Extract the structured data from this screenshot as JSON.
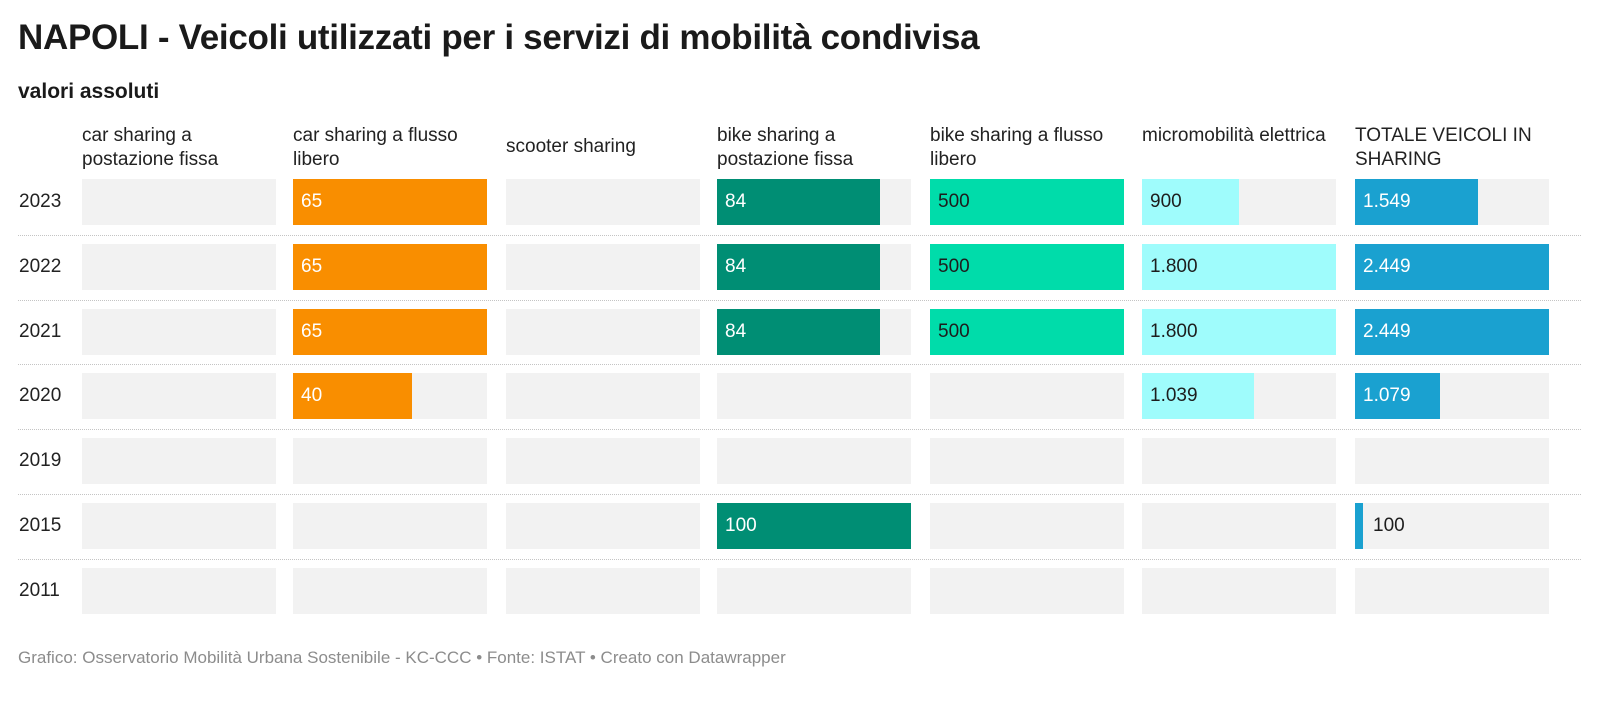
{
  "header": {
    "title": "NAPOLI - Veicoli utilizzati per i servizi di mobilità condivisa",
    "subtitle": "valori assoluti"
  },
  "footer": {
    "text": "Grafico: Osservatorio Mobilità Urbana Sostenibile - KC-CCC • Fonte: ISTAT • Creato con Datawrapper"
  },
  "chart_data": {
    "type": "bar",
    "title": "NAPOLI - Veicoli utilizzati per i servizi di mobilità condivisa",
    "subtitle": "valori assoluti",
    "categories": [
      "2023",
      "2022",
      "2021",
      "2020",
      "2019",
      "2015",
      "2011"
    ],
    "series": [
      {
        "name": "car sharing a postazione fissa",
        "color": "#f28c00",
        "values": [
          null,
          null,
          null,
          null,
          null,
          null,
          null
        ],
        "labels": [
          null,
          null,
          null,
          null,
          null,
          null,
          null
        ]
      },
      {
        "name": "car sharing a flusso libero",
        "color": "#f98e00",
        "values": [
          65,
          65,
          65,
          40,
          null,
          null,
          null
        ],
        "labels": [
          "65",
          "65",
          "65",
          "40",
          null,
          null,
          null
        ]
      },
      {
        "name": "scooter sharing",
        "color": "#f28c00",
        "values": [
          null,
          null,
          null,
          null,
          null,
          null,
          null
        ],
        "labels": [
          null,
          null,
          null,
          null,
          null,
          null,
          null
        ]
      },
      {
        "name": "bike sharing a postazione fissa",
        "color": "#008e74",
        "values": [
          84,
          84,
          84,
          null,
          null,
          100,
          null
        ],
        "labels": [
          "84",
          "84",
          "84",
          null,
          null,
          "100",
          null
        ]
      },
      {
        "name": "bike sharing a flusso libero",
        "color": "#00dcaa",
        "values": [
          500,
          500,
          500,
          null,
          null,
          null,
          null
        ],
        "labels": [
          "500",
          "500",
          "500",
          null,
          null,
          null,
          null
        ]
      },
      {
        "name": "micromobilità elettrica",
        "color": "#9ffcfc",
        "values": [
          900,
          1800,
          1800,
          1039,
          null,
          null,
          null
        ],
        "labels": [
          "900",
          "1.800",
          "1.800",
          "1.039",
          null,
          null,
          null
        ]
      },
      {
        "name": "TOTALE VEICOLI IN SHARING",
        "color": "#1aa1d0",
        "values": [
          1549,
          2449,
          2449,
          1079,
          null,
          100,
          null
        ],
        "labels": [
          "1.549",
          "2.449",
          "2.449",
          "1.079",
          null,
          "100",
          null
        ]
      }
    ],
    "grid": false,
    "legend": "none"
  }
}
